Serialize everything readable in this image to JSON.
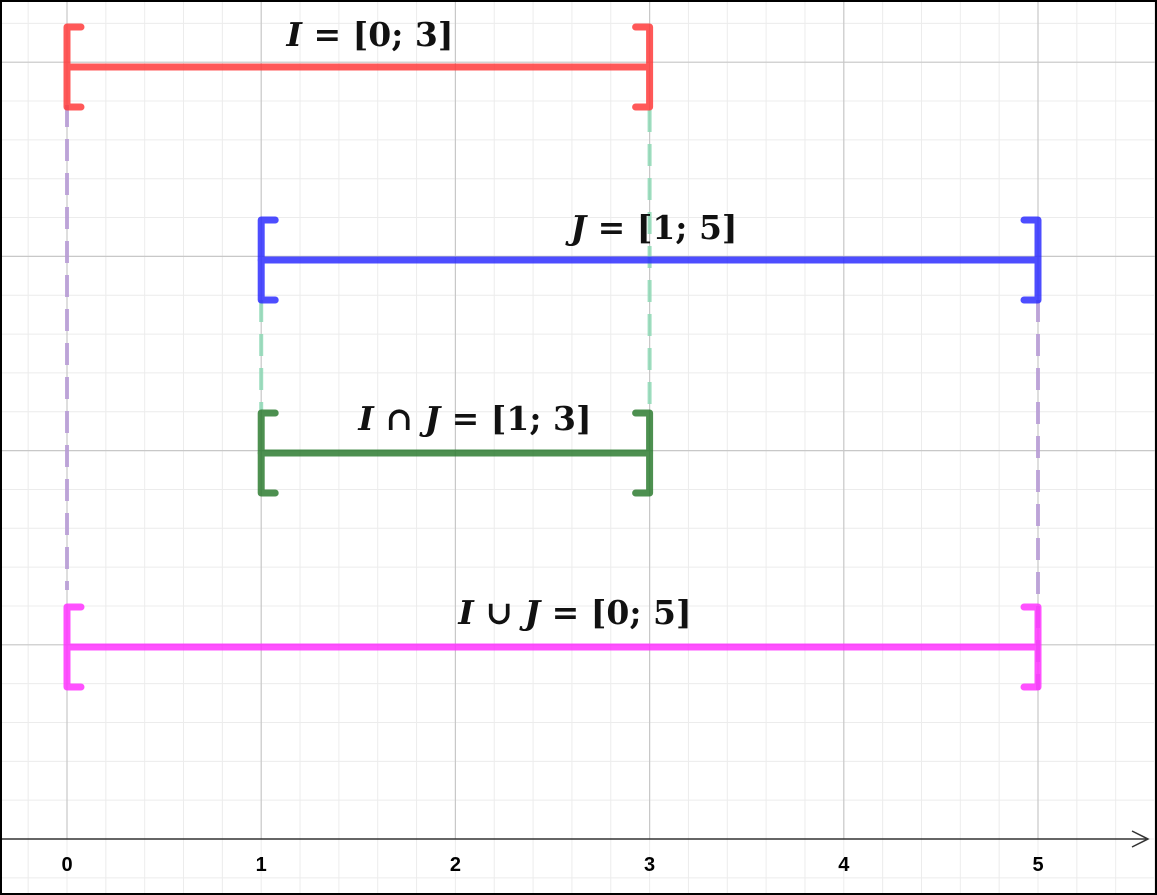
{
  "axis": {
    "min": 0,
    "max": 5,
    "ticks": [
      "0",
      "1",
      "2",
      "3",
      "4",
      "5"
    ]
  },
  "intervals": [
    {
      "id": "I",
      "lo": 0,
      "hi": 3,
      "color": "#ff3c3c",
      "parts": [
        [
          "I",
          true
        ],
        [
          " = [0; 3]",
          false
        ]
      ]
    },
    {
      "id": "J",
      "lo": 1,
      "hi": 5,
      "color": "#2e2eff",
      "parts": [
        [
          "J",
          true
        ],
        [
          " = [1; 5]",
          false
        ]
      ]
    },
    {
      "id": "I-cap-J",
      "lo": 1,
      "hi": 3,
      "color": "#2e7d32",
      "parts": [
        [
          "I",
          true
        ],
        [
          " ∩ ",
          false
        ],
        [
          "J",
          true
        ],
        [
          " = [1; 3]",
          false
        ]
      ]
    },
    {
      "id": "I-cup-J",
      "lo": 0,
      "hi": 5,
      "color": "#ff33ff",
      "parts": [
        [
          "I",
          true
        ],
        [
          " ∪ ",
          false
        ],
        [
          "J",
          true
        ],
        [
          " = [0; 5]",
          false
        ]
      ]
    }
  ],
  "guides": [
    {
      "x": 0,
      "color": "#b79ad6"
    },
    {
      "x": 5,
      "color": "#b79ad6"
    },
    {
      "x": 1,
      "color": "#8fd9b6"
    },
    {
      "x": 3,
      "color": "#8fd9b6"
    }
  ]
}
